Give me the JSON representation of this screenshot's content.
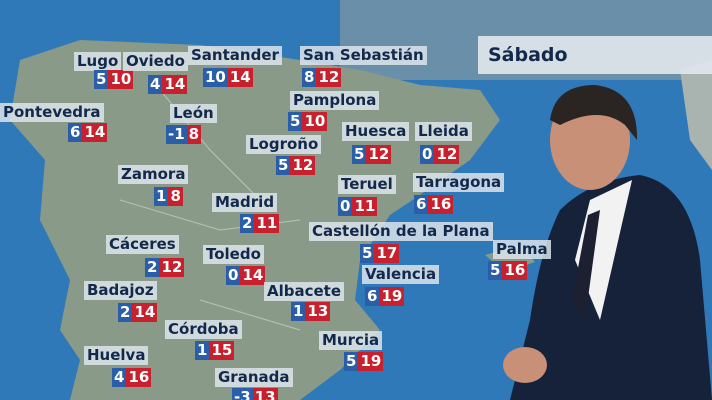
{
  "header": {
    "title": "Sábado"
  },
  "cities": [
    {
      "name": "Lugo",
      "min": 5,
      "max": 10
    },
    {
      "name": "Oviedo",
      "min": 4,
      "max": 14
    },
    {
      "name": "Santander",
      "min": 10,
      "max": 14
    },
    {
      "name": "San Sebastián",
      "min": 8,
      "max": 12
    },
    {
      "name": "Pontevedra",
      "min": 6,
      "max": 14
    },
    {
      "name": "León",
      "min": -1,
      "max": 8
    },
    {
      "name": "Pamplona",
      "min": 5,
      "max": 10
    },
    {
      "name": "Huesca",
      "min": 5,
      "max": 12
    },
    {
      "name": "Lleida",
      "min": 0,
      "max": 12
    },
    {
      "name": "Logroño",
      "min": 5,
      "max": 12
    },
    {
      "name": "Zamora",
      "min": 1,
      "max": 8
    },
    {
      "name": "Teruel",
      "min": 0,
      "max": 11
    },
    {
      "name": "Tarragona",
      "min": 6,
      "max": 16
    },
    {
      "name": "Madrid",
      "min": 2,
      "max": 11
    },
    {
      "name": "Castellón de la Plana",
      "min": 5,
      "max": 17
    },
    {
      "name": "Palma",
      "min": 5,
      "max": 16
    },
    {
      "name": "Cáceres",
      "min": 2,
      "max": 12
    },
    {
      "name": "Toledo",
      "min": 0,
      "max": 14
    },
    {
      "name": "Valencia",
      "min": 6,
      "max": 19
    },
    {
      "name": "Badajoz",
      "min": 2,
      "max": 14
    },
    {
      "name": "Albacete",
      "min": 1,
      "max": 13
    },
    {
      "name": "Córdoba",
      "min": 1,
      "max": 15
    },
    {
      "name": "Murcia",
      "min": 5,
      "max": 19
    },
    {
      "name": "Huelva",
      "min": 4,
      "max": 16
    },
    {
      "name": "Granada",
      "min": -3,
      "max": 13
    }
  ]
}
